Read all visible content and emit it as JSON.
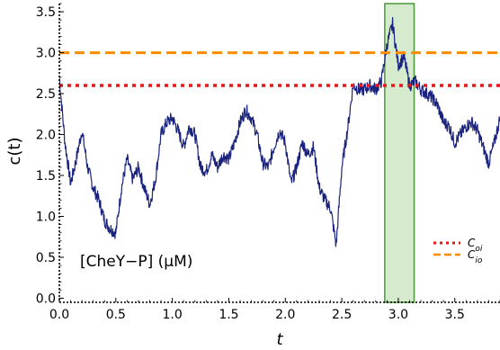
{
  "chart_data": {
    "type": "line",
    "xlabel": "t",
    "ylabel": "c(t)",
    "annotation": "[CheY−P] (μM)",
    "xlim": [
      0,
      3.9
    ],
    "ylim": [
      -0.05,
      3.6
    ],
    "xticks": [
      "0.0",
      "0.5",
      "1.0",
      "1.5",
      "2.0",
      "2.5",
      "3.0",
      "3.5"
    ],
    "yticks": [
      "0.0",
      "0.5",
      "1.0",
      "1.5",
      "2.0",
      "2.5",
      "3.0",
      "3.5"
    ],
    "highlight_region": {
      "x_start": 2.88,
      "x_end": 3.14,
      "color": "#cfe6c4",
      "edge_color": "#4a9a3a"
    },
    "hlines": [
      {
        "name": "C_oi",
        "value": 2.6,
        "color": "#e31a1c",
        "style": "dotted"
      },
      {
        "name": "C_io",
        "value": 3.0,
        "color": "#ff8c00",
        "style": "dashed"
      }
    ],
    "legend": {
      "placement": "bottom-right",
      "entries": [
        {
          "main": "C",
          "sub": "oi",
          "color": "#e31a1c",
          "style": "dotted"
        },
        {
          "main": "C",
          "sub": "io",
          "color": "#ff8c00",
          "style": "dashed"
        }
      ]
    },
    "series": [
      {
        "color": "#1a237e",
        "x": [
          0.0,
          0.05,
          0.1,
          0.15,
          0.2,
          0.25,
          0.3,
          0.35,
          0.4,
          0.45,
          0.5,
          0.55,
          0.6,
          0.65,
          0.7,
          0.75,
          0.8,
          0.85,
          0.9,
          0.95,
          1.0,
          1.05,
          1.1,
          1.15,
          1.2,
          1.25,
          1.3,
          1.35,
          1.4,
          1.45,
          1.5,
          1.55,
          1.6,
          1.65,
          1.7,
          1.75,
          1.8,
          1.85,
          1.9,
          1.95,
          2.0,
          2.05,
          2.1,
          2.15,
          2.2,
          2.25,
          2.3,
          2.35,
          2.4,
          2.45,
          2.5,
          2.55,
          2.6,
          2.65,
          2.7,
          2.75,
          2.8,
          2.85,
          2.9,
          2.95,
          3.0,
          3.05,
          3.1,
          3.15,
          3.2,
          3.25,
          3.3,
          3.35,
          3.4,
          3.45,
          3.5,
          3.55,
          3.6,
          3.65,
          3.7,
          3.75,
          3.8,
          3.85,
          3.9
        ],
        "y": [
          2.7,
          1.9,
          1.4,
          1.7,
          2.05,
          1.6,
          1.35,
          1.2,
          0.95,
          0.85,
          0.8,
          1.35,
          1.7,
          1.45,
          1.6,
          1.35,
          1.15,
          1.45,
          2.0,
          2.15,
          2.2,
          2.05,
          1.85,
          2.1,
          2.0,
          1.6,
          1.55,
          1.75,
          1.6,
          1.75,
          1.7,
          1.9,
          2.15,
          2.3,
          2.2,
          2.0,
          1.65,
          1.6,
          1.85,
          2.05,
          1.9,
          1.4,
          1.6,
          1.9,
          1.75,
          1.85,
          1.35,
          1.2,
          1.1,
          0.65,
          1.6,
          2.05,
          2.6,
          2.55,
          2.55,
          2.6,
          2.55,
          2.65,
          3.1,
          3.35,
          2.85,
          2.95,
          2.6,
          2.65,
          2.55,
          2.5,
          2.45,
          2.35,
          2.15,
          2.1,
          1.9,
          2.0,
          2.1,
          2.15,
          2.05,
          1.85,
          1.65,
          1.9,
          2.2
        ]
      }
    ]
  }
}
